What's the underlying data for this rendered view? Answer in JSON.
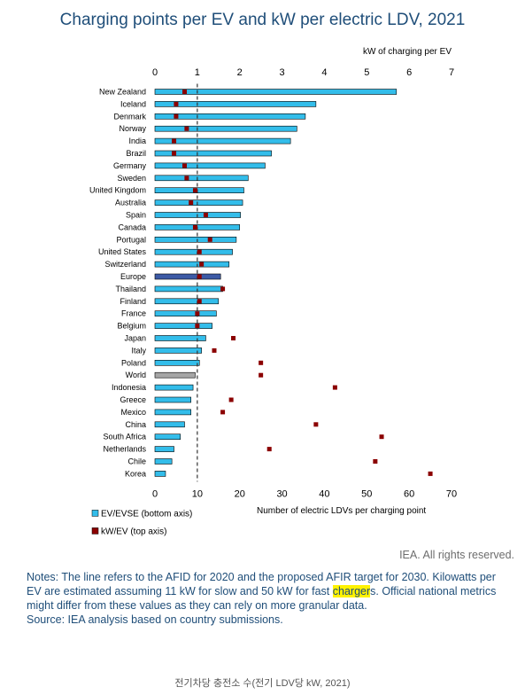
{
  "title": "Charging points per EV and kW per electric LDV, 2021",
  "chart_data": {
    "type": "bar",
    "title": "Charging points per EV and kW per electric LDV, 2021",
    "categories": [
      "New Zealand",
      "Iceland",
      "Denmark",
      "Norway",
      "India",
      "Brazil",
      "Germany",
      "Sweden",
      "United Kingdom",
      "Australia",
      "Spain",
      "Canada",
      "Portugal",
      "United States",
      "Switzerland",
      "Europe",
      "Thailand",
      "Finland",
      "France",
      "Belgium",
      "Japan",
      "Italy",
      "Poland",
      "World",
      "Indonesia",
      "Greece",
      "Mexico",
      "China",
      "South Africa",
      "Netherlands",
      "Chile",
      "Korea"
    ],
    "series": [
      {
        "name": "EV/EVSE (bottom axis)",
        "axis": "bottom",
        "color": "#33bdea",
        "values": [
          57,
          38,
          35.5,
          33.5,
          32,
          27.5,
          26,
          22,
          21,
          20.7,
          20.2,
          20,
          19.2,
          18.3,
          17.5,
          15.5,
          16,
          15,
          14.5,
          13.5,
          12,
          11,
          10.5,
          9.5,
          9,
          8.5,
          8.5,
          7,
          6,
          4.5,
          4,
          2.5
        ]
      },
      {
        "name": "kW/EV (top axis)",
        "axis": "top",
        "color": "#8b0000",
        "values": [
          0.7,
          0.5,
          0.5,
          0.75,
          0.45,
          0.45,
          0.7,
          0.75,
          0.95,
          0.85,
          1.2,
          0.95,
          1.3,
          1.05,
          1.1,
          1.05,
          1.6,
          1.05,
          1.0,
          1.0,
          1.85,
          1.4,
          2.5,
          2.5,
          4.25,
          1.8,
          1.6,
          3.8,
          5.35,
          2.7,
          5.2,
          6.5
        ]
      }
    ],
    "highlight_colors": {
      "Europe": "#3c5aa6",
      "World": "#a6a6a6"
    },
    "bottom_axis": {
      "label": "Number of electric LDVs per charging point",
      "range": [
        0,
        70
      ],
      "ticks": [
        0,
        10,
        20,
        30,
        40,
        50,
        60,
        70
      ]
    },
    "top_axis": {
      "label": "kW of charging per EV",
      "range": [
        0,
        7
      ],
      "ticks": [
        0,
        1,
        2,
        3,
        4,
        5,
        6,
        7
      ]
    },
    "reference_line": {
      "value": 10,
      "axis": "bottom",
      "style": "dashed"
    },
    "legend": [
      {
        "label": "EV/EVSE (bottom axis)",
        "color": "#33bdea",
        "marker": "square"
      },
      {
        "label": "kW/EV (top axis)",
        "color": "#8b0000",
        "marker": "square"
      }
    ],
    "legend_position": "bottom-left",
    "grid": false
  },
  "rights": "IEA. All rights reserved.",
  "notes": {
    "before": "Notes: The line refers to the AFID for 2020 and the proposed AFIR target for 2030. Kilowatts per EV are estimated assuming 11 kW for slow and 50 kW for fast ",
    "highlight": "charger",
    "after": "s. Official national metrics might differ from these values as they can rely on more granular data.",
    "source": "Source: IEA analysis based on country submissions."
  },
  "caption": "전기차당 충전소 수(전기 LDV당 kW, 2021)"
}
